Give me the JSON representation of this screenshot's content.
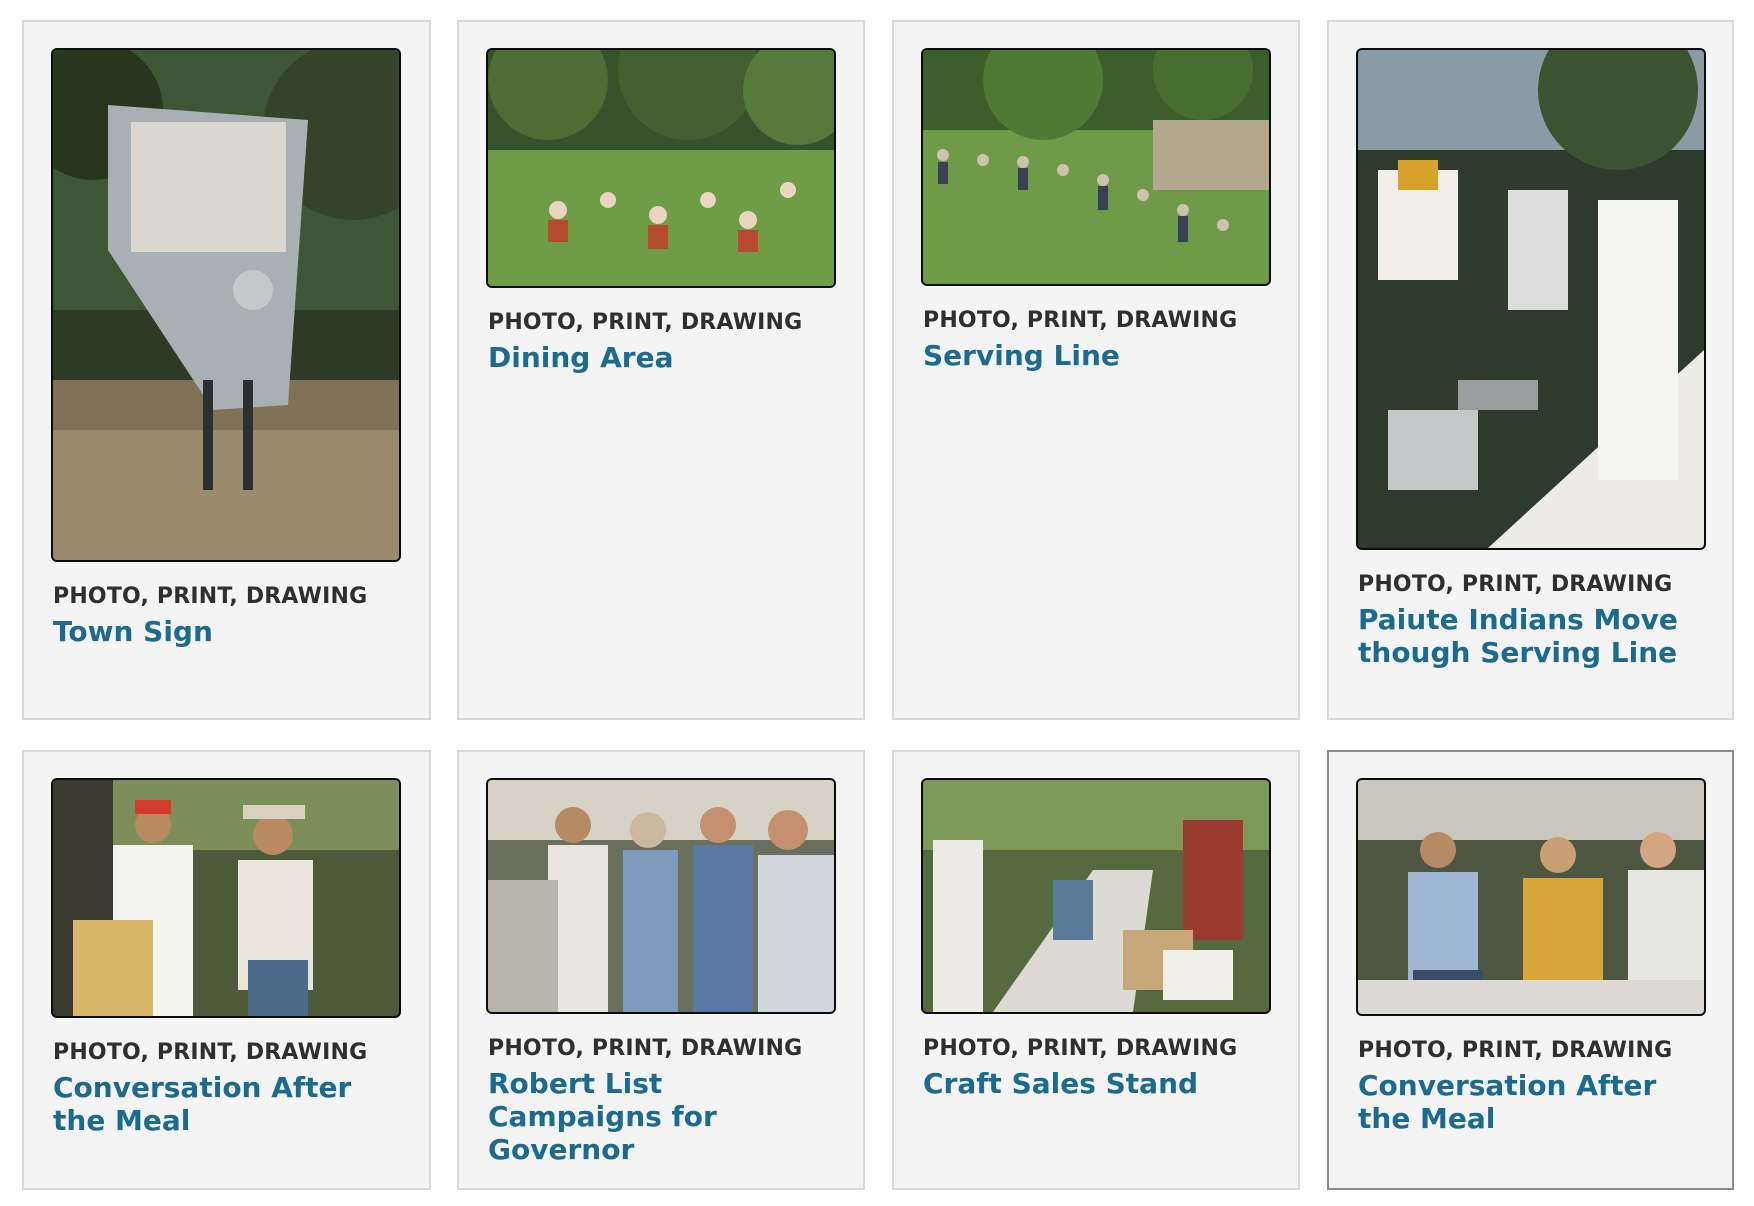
{
  "cards": [
    {
      "type_label": "PHOTO, PRINT, DRAWING",
      "title": "Town Sign",
      "image_subject": "nevada-historical-marker-sign",
      "accent": "#3e5a35",
      "hovered": false
    },
    {
      "type_label": "PHOTO, PRINT, DRAWING",
      "title": "Dining Area",
      "image_subject": "crowd-seated-on-lawn",
      "accent": "#5b8a3b",
      "hovered": false
    },
    {
      "type_label": "PHOTO, PRINT, DRAWING",
      "title": "Serving Line",
      "image_subject": "people-queued-on-lawn",
      "accent": "#6f9a47",
      "hovered": false
    },
    {
      "type_label": "PHOTO, PRINT, DRAWING",
      "title": "Paiute Indians Move though Serving Line",
      "image_subject": "men-at-buffet-table",
      "accent": "#d9d6cc",
      "hovered": false
    },
    {
      "type_label": "PHOTO, PRINT, DRAWING",
      "title": "Conversation After the Meal",
      "image_subject": "two-men-talking",
      "accent": "#4d5a3a",
      "hovered": false
    },
    {
      "type_label": "PHOTO, PRINT, DRAWING",
      "title": "Robert List Campaigns for Governor",
      "image_subject": "handshake-group",
      "accent": "#6a7f96",
      "hovered": false
    },
    {
      "type_label": "PHOTO, PRINT, DRAWING",
      "title": "Craft Sales Stand",
      "image_subject": "craft-tables-outdoors",
      "accent": "#b9b2a3",
      "hovered": false
    },
    {
      "type_label": "PHOTO, PRINT, DRAWING",
      "title": "Conversation After the Meal",
      "image_subject": "men-seated-at-table",
      "accent": "#9aa9be",
      "hovered": true
    }
  ]
}
